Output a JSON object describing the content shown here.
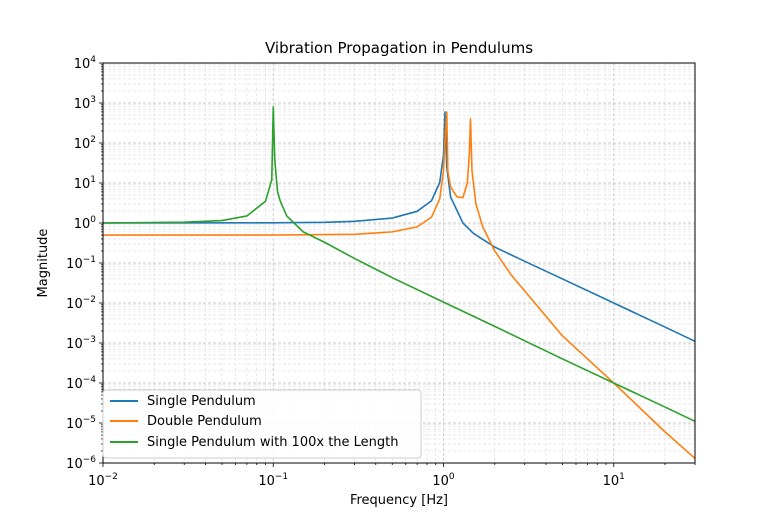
{
  "chart_data": {
    "type": "line",
    "title": "Vibration Propagation in Pendulums",
    "xlabel": "Frequency [Hz]",
    "ylabel": "Magnitude",
    "xscale": "log",
    "yscale": "log",
    "xlim": [
      0.01,
      30
    ],
    "ylim": [
      1e-06,
      10000
    ],
    "grid": "major and minor",
    "legend_position": "lower-left",
    "x_tick_labels": [
      {
        "exp": "-2",
        "value": 0.01
      },
      {
        "exp": "-1",
        "value": 0.1
      },
      {
        "exp": "0",
        "value": 1
      },
      {
        "exp": "1",
        "value": 10
      }
    ],
    "y_tick_labels": [
      {
        "exp": "-6",
        "value": 1e-06
      },
      {
        "exp": "-5",
        "value": 1e-05
      },
      {
        "exp": "-4",
        "value": 0.0001
      },
      {
        "exp": "-3",
        "value": 0.001
      },
      {
        "exp": "-2",
        "value": 0.01
      },
      {
        "exp": "-1",
        "value": 0.1
      },
      {
        "exp": "0",
        "value": 1
      },
      {
        "exp": "1",
        "value": 10
      },
      {
        "exp": "2",
        "value": 100
      },
      {
        "exp": "3",
        "value": 1000
      },
      {
        "exp": "4",
        "value": 10000
      }
    ],
    "series": [
      {
        "name": "Single Pendulum",
        "color": "#1f77b4",
        "x": [
          0.01,
          0.1,
          0.2,
          0.3,
          0.5,
          0.7,
          0.85,
          0.95,
          1.0,
          1.02,
          1.045,
          1.1,
          1.3,
          1.5,
          2,
          3,
          5,
          10,
          20,
          30
        ],
        "y": [
          1.0,
          1.01,
          1.04,
          1.1,
          1.33,
          1.96,
          3.6,
          10.3,
          50,
          600,
          25,
          4.5,
          1.0,
          0.55,
          0.25,
          0.11,
          0.04,
          0.01,
          0.0025,
          0.0011
        ]
      },
      {
        "name": "Double Pendulum",
        "color": "#ff7f0e",
        "x": [
          0.01,
          0.1,
          0.3,
          0.5,
          0.7,
          0.85,
          0.95,
          1.0,
          1.02,
          1.045,
          1.06,
          1.1,
          1.2,
          1.3,
          1.38,
          1.42,
          1.44,
          1.47,
          1.55,
          1.7,
          2,
          2.5,
          3,
          5,
          10,
          20,
          30
        ],
        "y": [
          0.5,
          0.5,
          0.52,
          0.6,
          0.8,
          1.4,
          4.0,
          20,
          120,
          600,
          20,
          8,
          4.5,
          4.3,
          10,
          60,
          400,
          20,
          3,
          0.8,
          0.2,
          0.05,
          0.02,
          0.0015,
          0.0001,
          6e-06,
          1.3e-06
        ]
      },
      {
        "name": "Single Pendulum with 100x the Length",
        "color": "#2ca02c",
        "x": [
          0.01,
          0.03,
          0.05,
          0.07,
          0.09,
          0.098,
          0.1,
          0.102,
          0.104,
          0.106,
          0.11,
          0.12,
          0.15,
          0.2,
          0.3,
          0.5,
          1,
          2,
          5,
          10,
          20,
          30
        ],
        "y": [
          1.0,
          1.05,
          1.15,
          1.5,
          3.5,
          12,
          800,
          40,
          15,
          6,
          3.5,
          1.5,
          0.6,
          0.33,
          0.13,
          0.043,
          0.0105,
          0.0026,
          0.0004,
          0.0001,
          2.5e-05,
          1.1e-05
        ]
      }
    ]
  }
}
